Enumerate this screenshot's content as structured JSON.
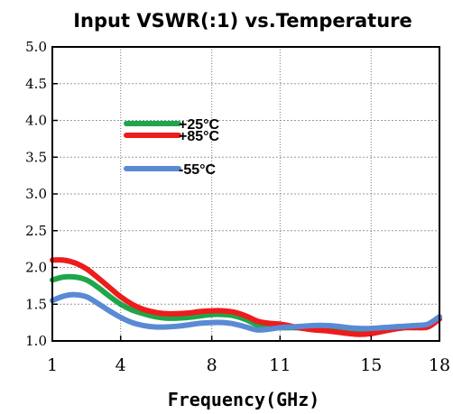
{
  "chart_data": {
    "type": "line",
    "title": "Input VSWR(:1) vs.Temperature",
    "xlabel": "Frequency(GHz)",
    "ylabel": "",
    "xlim": [
      1,
      18
    ],
    "ylim": [
      1.0,
      5.0
    ],
    "x_ticks": [
      "1",
      "4",
      "8",
      "11",
      "15",
      "18"
    ],
    "y_ticks": [
      "5.0",
      "4.5",
      "4.0",
      "3.5",
      "3.0",
      "2.5",
      "2.0",
      "1.5",
      "1.0"
    ],
    "grid": true,
    "legend_position": "upper-left inside plot",
    "series": [
      {
        "name": "+25°C",
        "color": "#1fa64a",
        "x": [
          1,
          1.5,
          2,
          2.5,
          3,
          3.5,
          4,
          4.5,
          5,
          5.5,
          6,
          6.5,
          7,
          7.5,
          8,
          8.5,
          9,
          9.5,
          10,
          10.5,
          11,
          11.5,
          12,
          12.5,
          13,
          13.5,
          14,
          14.5,
          15,
          15.5,
          16,
          16.5,
          17,
          17.5,
          18
        ],
        "y": [
          1.83,
          1.87,
          1.87,
          1.83,
          1.73,
          1.61,
          1.5,
          1.42,
          1.37,
          1.33,
          1.31,
          1.31,
          1.32,
          1.34,
          1.36,
          1.36,
          1.34,
          1.29,
          1.22,
          1.19,
          1.18,
          1.18,
          1.18,
          1.19,
          1.19,
          1.18,
          1.16,
          1.15,
          1.15,
          1.17,
          1.19,
          1.2,
          1.21,
          1.22,
          1.3
        ]
      },
      {
        "name": "+85°C",
        "color": "#ee1c1c",
        "x": [
          1,
          1.5,
          2,
          2.5,
          3,
          3.5,
          4,
          4.5,
          5,
          5.5,
          6,
          6.5,
          7,
          7.5,
          8,
          8.5,
          9,
          9.5,
          10,
          10.5,
          11,
          11.5,
          12,
          12.5,
          13,
          13.5,
          14,
          14.5,
          15,
          15.5,
          16,
          16.5,
          17,
          17.5,
          18
        ],
        "y": [
          2.1,
          2.1,
          2.06,
          1.98,
          1.86,
          1.73,
          1.6,
          1.5,
          1.43,
          1.39,
          1.37,
          1.37,
          1.38,
          1.4,
          1.41,
          1.41,
          1.39,
          1.34,
          1.27,
          1.24,
          1.23,
          1.2,
          1.17,
          1.15,
          1.14,
          1.12,
          1.1,
          1.09,
          1.1,
          1.13,
          1.16,
          1.18,
          1.18,
          1.19,
          1.3
        ]
      },
      {
        "name": "-55°C",
        "color": "#5a8ad4",
        "x": [
          1,
          1.5,
          2,
          2.5,
          3,
          3.5,
          4,
          4.5,
          5,
          5.5,
          6,
          6.5,
          7,
          7.5,
          8,
          8.5,
          9,
          9.5,
          10,
          10.5,
          11,
          11.5,
          12,
          12.5,
          13,
          13.5,
          14,
          14.5,
          15,
          15.5,
          16,
          16.5,
          17,
          17.5,
          18
        ],
        "y": [
          1.55,
          1.61,
          1.63,
          1.6,
          1.51,
          1.41,
          1.32,
          1.25,
          1.21,
          1.19,
          1.19,
          1.2,
          1.22,
          1.24,
          1.25,
          1.25,
          1.23,
          1.19,
          1.15,
          1.16,
          1.18,
          1.19,
          1.2,
          1.21,
          1.21,
          1.2,
          1.18,
          1.17,
          1.17,
          1.18,
          1.19,
          1.2,
          1.21,
          1.23,
          1.33
        ]
      }
    ]
  }
}
